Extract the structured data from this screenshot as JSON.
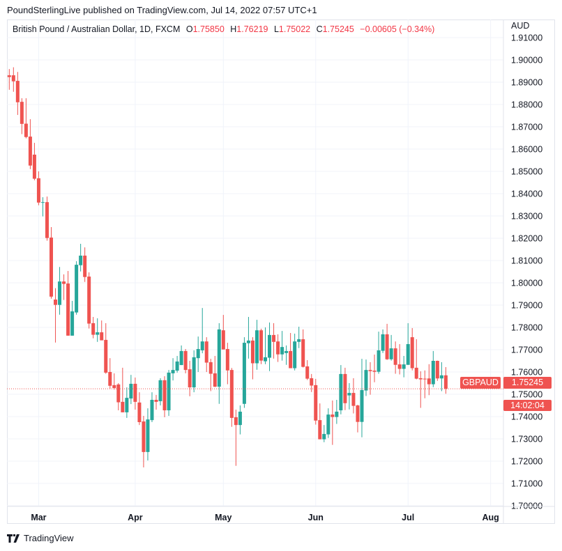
{
  "publisher_line": "PoundSterlingLive published on TradingView.com, Jul 14, 2022 07:57 UTC+1",
  "legend": {
    "instrument": "British Pound / Australian Dollar, 1D, FXCM",
    "o_label": "O",
    "o": "1.75850",
    "h_label": "H",
    "h": "1.76219",
    "l_label": "L",
    "l": "1.75022",
    "c_label": "C",
    "c": "1.75245",
    "change": "−0.00605 (−0.34%)"
  },
  "axis_unit": "AUD",
  "price_tag": {
    "symbol": "GBPAUD",
    "price": "1.75245",
    "countdown": "14:02:04"
  },
  "footer": {
    "brand": "TradingView"
  },
  "colors": {
    "up": "#26a69a",
    "down": "#ef5350",
    "grid": "#f0f3fa"
  },
  "chart_data": {
    "type": "candlestick",
    "ylim": [
      1.7,
      1.91
    ],
    "y_ticks": [
      "1.91000",
      "1.90000",
      "1.89000",
      "1.88000",
      "1.87000",
      "1.86000",
      "1.85000",
      "1.84000",
      "1.83000",
      "1.82000",
      "1.81000",
      "1.80000",
      "1.79000",
      "1.78000",
      "1.77000",
      "1.76000",
      "1.75000",
      "1.74000",
      "1.73000",
      "1.72000",
      "1.71000",
      "1.70000"
    ],
    "x_ticks": [
      {
        "label": "Mar",
        "index": 7
      },
      {
        "label": "Apr",
        "index": 30
      },
      {
        "label": "May",
        "index": 51
      },
      {
        "label": "Jun",
        "index": 73
      },
      {
        "label": "Jul",
        "index": 95
      },
      {
        "label": "Aug",
        "index": 116
      }
    ],
    "last_price": 1.75245,
    "ohlc": [
      [
        1.8931,
        1.8959,
        1.8866,
        1.8923
      ],
      [
        1.8931,
        1.8967,
        1.8857,
        1.8904
      ],
      [
        1.8906,
        1.8946,
        1.8753,
        1.881
      ],
      [
        1.8812,
        1.8828,
        1.8667,
        1.8713
      ],
      [
        1.8714,
        1.8828,
        1.8648,
        1.8654
      ],
      [
        1.8656,
        1.8734,
        1.851,
        1.8526
      ],
      [
        1.8575,
        1.8628,
        1.846,
        1.8467
      ],
      [
        1.8469,
        1.85,
        1.8348,
        1.836
      ],
      [
        1.836,
        1.8384,
        1.8298,
        1.8362
      ],
      [
        1.8362,
        1.8387,
        1.8189,
        1.8201
      ],
      [
        1.8203,
        1.825,
        1.7929,
        1.7938
      ],
      [
        1.7925,
        1.7976,
        1.7732,
        1.7901
      ],
      [
        1.7901,
        1.8071,
        1.7857,
        1.8006
      ],
      [
        1.8006,
        1.8038,
        1.7923,
        1.7995
      ],
      [
        1.7997,
        1.8053,
        1.7763,
        1.7763
      ],
      [
        1.7763,
        1.7919,
        1.7763,
        1.7872
      ],
      [
        1.7867,
        1.8097,
        1.7857,
        1.8081
      ],
      [
        1.8079,
        1.8175,
        1.8051,
        1.8122
      ],
      [
        1.8122,
        1.8159,
        1.8004,
        1.8026
      ],
      [
        1.8028,
        1.8047,
        1.7795,
        1.7817
      ],
      [
        1.7819,
        1.7847,
        1.7751,
        1.7767
      ],
      [
        1.7767,
        1.7841,
        1.7735,
        1.7778
      ],
      [
        1.7778,
        1.7831,
        1.7742,
        1.7742
      ],
      [
        1.7744,
        1.7819,
        1.7592,
        1.7597
      ],
      [
        1.76,
        1.7662,
        1.7524,
        1.7538
      ],
      [
        1.7541,
        1.7594,
        1.7521,
        1.7528
      ],
      [
        1.7544,
        1.755,
        1.7428,
        1.7464
      ],
      [
        1.7466,
        1.7619,
        1.7419,
        1.7419
      ],
      [
        1.7419,
        1.7531,
        1.7394,
        1.7484
      ],
      [
        1.7481,
        1.7587,
        1.7456,
        1.7547
      ],
      [
        1.7547,
        1.7575,
        1.7431,
        1.7466
      ],
      [
        1.7463,
        1.7509,
        1.7362,
        1.7375
      ],
      [
        1.7378,
        1.7403,
        1.7172,
        1.7241
      ],
      [
        1.7241,
        1.7437,
        1.7203,
        1.7387
      ],
      [
        1.7384,
        1.7509,
        1.7375,
        1.7475
      ],
      [
        1.7475,
        1.7497,
        1.7431,
        1.7466
      ],
      [
        1.7469,
        1.7572,
        1.745,
        1.7563
      ],
      [
        1.7563,
        1.7581,
        1.7397,
        1.7428
      ],
      [
        1.7428,
        1.7609,
        1.7403,
        1.7597
      ],
      [
        1.7594,
        1.7662,
        1.7562,
        1.7609
      ],
      [
        1.7606,
        1.7672,
        1.7597,
        1.7647
      ],
      [
        1.7631,
        1.7719,
        1.7631,
        1.7694
      ],
      [
        1.7694,
        1.7703,
        1.7594,
        1.7609
      ],
      [
        1.7612,
        1.765,
        1.7491,
        1.7531
      ],
      [
        1.7531,
        1.7697,
        1.7509,
        1.7666
      ],
      [
        1.7662,
        1.7759,
        1.76,
        1.7703
      ],
      [
        1.7697,
        1.7887,
        1.7684,
        1.7737
      ],
      [
        1.7737,
        1.7756,
        1.76,
        1.7642
      ],
      [
        1.7644,
        1.7659,
        1.7514,
        1.7592
      ],
      [
        1.7594,
        1.7672,
        1.7532,
        1.7534
      ],
      [
        1.7534,
        1.7819,
        1.7457,
        1.7791
      ],
      [
        1.7787,
        1.7856,
        1.7701,
        1.7701
      ],
      [
        1.7703,
        1.7731,
        1.7545,
        1.7607
      ],
      [
        1.7609,
        1.7618,
        1.7354,
        1.7394
      ],
      [
        1.7397,
        1.7431,
        1.7179,
        1.7362
      ],
      [
        1.7362,
        1.745,
        1.732,
        1.7422
      ],
      [
        1.7457,
        1.7756,
        1.7439,
        1.7731
      ],
      [
        1.7729,
        1.7847,
        1.766,
        1.7741
      ],
      [
        1.7741,
        1.7756,
        1.7567,
        1.7639
      ],
      [
        1.7639,
        1.7834,
        1.761,
        1.7787
      ],
      [
        1.7787,
        1.7794,
        1.7635,
        1.7651
      ],
      [
        1.7648,
        1.78,
        1.7635,
        1.7666
      ],
      [
        1.7664,
        1.7822,
        1.7604,
        1.7766
      ],
      [
        1.7766,
        1.7819,
        1.766,
        1.7735
      ],
      [
        1.7737,
        1.7769,
        1.7645,
        1.7679
      ],
      [
        1.7679,
        1.7784,
        1.7651,
        1.7712
      ],
      [
        1.7685,
        1.7719,
        1.7632,
        1.7694
      ],
      [
        1.7694,
        1.7775,
        1.7617,
        1.7617
      ],
      [
        1.7617,
        1.7772,
        1.7607,
        1.7737
      ],
      [
        1.7735,
        1.7803,
        1.7707,
        1.7747
      ],
      [
        1.7747,
        1.7791,
        1.762,
        1.7623
      ],
      [
        1.7625,
        1.7653,
        1.7564,
        1.757
      ],
      [
        1.7572,
        1.7591,
        1.751,
        1.7539
      ],
      [
        1.7541,
        1.7569,
        1.7364,
        1.7382
      ],
      [
        1.7384,
        1.7459,
        1.7298,
        1.7298
      ],
      [
        1.7298,
        1.7362,
        1.7285,
        1.7322
      ],
      [
        1.732,
        1.7437,
        1.7304,
        1.7409
      ],
      [
        1.7409,
        1.7472,
        1.7273,
        1.7398
      ],
      [
        1.7398,
        1.7475,
        1.7367,
        1.7422
      ],
      [
        1.7428,
        1.7631,
        1.741,
        1.7591
      ],
      [
        1.7591,
        1.7619,
        1.7429,
        1.746
      ],
      [
        1.7495,
        1.755,
        1.7432,
        1.7506
      ],
      [
        1.7506,
        1.7572,
        1.7414,
        1.7448
      ],
      [
        1.745,
        1.7453,
        1.7329,
        1.7376
      ],
      [
        1.7376,
        1.7659,
        1.7307,
        1.7519
      ],
      [
        1.7517,
        1.7656,
        1.7492,
        1.7609
      ],
      [
        1.7609,
        1.7644,
        1.7498,
        1.7604
      ],
      [
        1.7606,
        1.7678,
        1.7554,
        1.7601
      ],
      [
        1.7601,
        1.7781,
        1.7592,
        1.7697
      ],
      [
        1.7695,
        1.7791,
        1.7685,
        1.7769
      ],
      [
        1.7769,
        1.7816,
        1.7654,
        1.7657
      ],
      [
        1.7657,
        1.7766,
        1.7651,
        1.7706
      ],
      [
        1.7706,
        1.7737,
        1.7592,
        1.7632
      ],
      [
        1.7634,
        1.7725,
        1.7589,
        1.7614
      ],
      [
        1.7614,
        1.7672,
        1.7576,
        1.7634
      ],
      [
        1.7632,
        1.7819,
        1.7632,
        1.7725
      ],
      [
        1.7756,
        1.7797,
        1.7607,
        1.7617
      ],
      [
        1.7619,
        1.7747,
        1.7567,
        1.757
      ],
      [
        1.7572,
        1.7603,
        1.7439,
        1.7567
      ],
      [
        1.757,
        1.7607,
        1.7482,
        1.7568
      ],
      [
        1.7571,
        1.7635,
        1.7496,
        1.7545
      ],
      [
        1.7545,
        1.7694,
        1.7532,
        1.765
      ],
      [
        1.765,
        1.7651,
        1.756,
        1.7571
      ],
      [
        1.7571,
        1.7644,
        1.7514,
        1.7585
      ],
      [
        1.7585,
        1.76219,
        1.75022,
        1.75245
      ]
    ]
  }
}
